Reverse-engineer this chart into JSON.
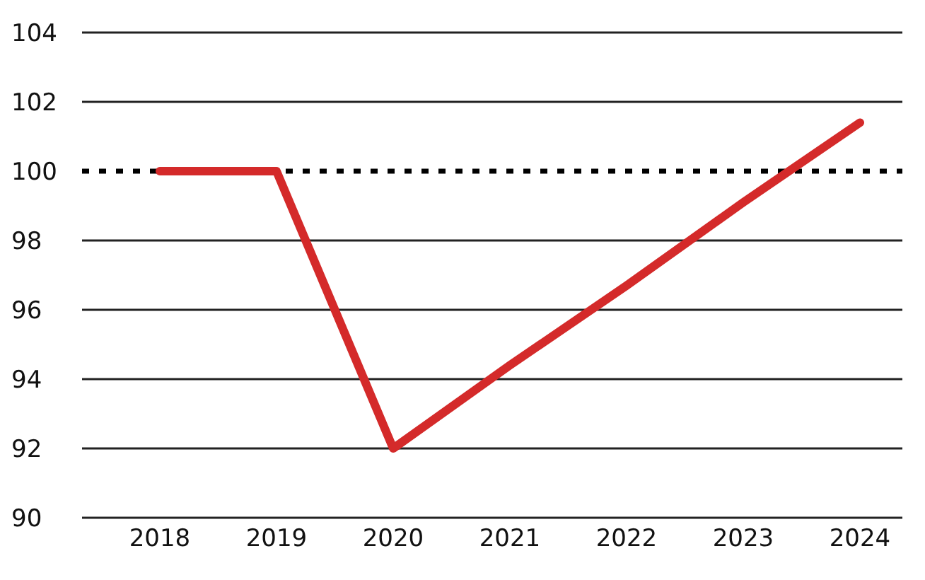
{
  "chart_data": {
    "type": "line",
    "categories": [
      "2018",
      "2019",
      "2020",
      "2021",
      "2022",
      "2023",
      "2024"
    ],
    "series": [
      {
        "color": "#d42a2a",
        "values": [
          100,
          100,
          92,
          94.4,
          96.7,
          99.1,
          101.4
        ]
      }
    ],
    "ylim": [
      90,
      104
    ],
    "yticks": [
      90,
      92,
      94,
      96,
      98,
      100,
      102,
      104
    ],
    "grid": "y",
    "marker": "none",
    "line_style": "solid",
    "ref_lines": [
      {
        "axis": "y",
        "value": 100,
        "color": "#000000",
        "line_style": "dotted"
      }
    ]
  }
}
